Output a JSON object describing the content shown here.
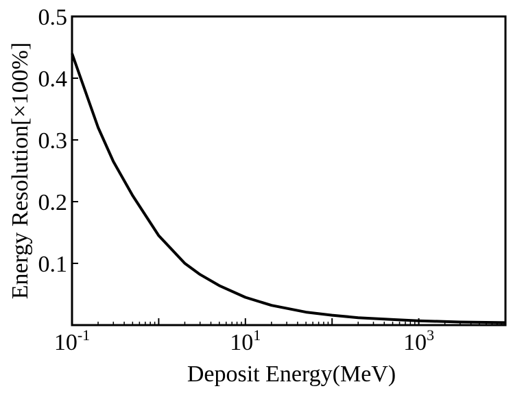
{
  "chart_data": {
    "type": "line",
    "title": "",
    "xlabel": "Deposit Energy(MeV)",
    "ylabel": "Energy Resolution[×100%]",
    "xscale": "log",
    "xlim": [
      0.1,
      10000
    ],
    "ylim": [
      0,
      0.5
    ],
    "grid": false,
    "legend": "none",
    "x_ticks": [
      {
        "value": 0.1,
        "base": "10",
        "exp": "-1"
      },
      {
        "value": 10,
        "base": "10",
        "exp": "1"
      },
      {
        "value": 1000,
        "base": "10",
        "exp": "3"
      }
    ],
    "y_ticks": [
      {
        "value": 0.1,
        "label": "0.1"
      },
      {
        "value": 0.2,
        "label": "0.2"
      },
      {
        "value": 0.3,
        "label": "0.3"
      },
      {
        "value": 0.4,
        "label": "0.4"
      },
      {
        "value": 0.5,
        "label": "0.5"
      }
    ],
    "series": [
      {
        "color": "#000000",
        "x": [
          0.1,
          0.2,
          0.3,
          0.5,
          1,
          2,
          3,
          5,
          10,
          20,
          50,
          100,
          200,
          500,
          1000,
          3000,
          10000
        ],
        "y": [
          0.44,
          0.32,
          0.265,
          0.21,
          0.145,
          0.1,
          0.082,
          0.064,
          0.045,
          0.032,
          0.021,
          0.016,
          0.012,
          0.009,
          0.007,
          0.005,
          0.004
        ]
      }
    ]
  }
}
